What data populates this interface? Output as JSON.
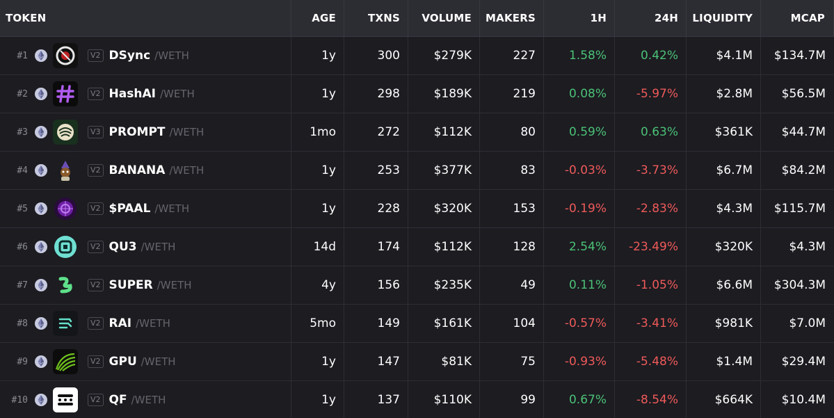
{
  "headers": {
    "token": "TOKEN",
    "age": "AGE",
    "txns": "TXNS",
    "volume": "VOLUME",
    "makers": "MAKERS",
    "h1": "1H",
    "h24": "24H",
    "liquidity": "LIQUIDITY",
    "mcap": "MCAP"
  },
  "rows": [
    {
      "rank": "#1",
      "version": "V2",
      "symbol": "DSync",
      "pair": "/WETH",
      "age": "1y",
      "txns": "300",
      "volume": "$279K",
      "makers": "227",
      "h1": "1.58%",
      "h1_dir": "pos",
      "h24": "0.42%",
      "h24_dir": "pos",
      "liquidity": "$4.1M",
      "mcap": "$134.7M",
      "logo": "dsync-logo"
    },
    {
      "rank": "#2",
      "version": "V2",
      "symbol": "HashAI",
      "pair": "/WETH",
      "age": "1y",
      "txns": "298",
      "volume": "$189K",
      "makers": "219",
      "h1": "0.08%",
      "h1_dir": "pos",
      "h24": "-5.97%",
      "h24_dir": "neg",
      "liquidity": "$2.8M",
      "mcap": "$56.5M",
      "logo": "hashai-logo"
    },
    {
      "rank": "#3",
      "version": "V3",
      "symbol": "PROMPT",
      "pair": "/WETH",
      "age": "1mo",
      "txns": "272",
      "volume": "$112K",
      "makers": "80",
      "h1": "0.59%",
      "h1_dir": "pos",
      "h24": "0.63%",
      "h24_dir": "pos",
      "liquidity": "$361K",
      "mcap": "$44.7M",
      "logo": "prompt-logo"
    },
    {
      "rank": "#4",
      "version": "V2",
      "symbol": "BANANA",
      "pair": "/WETH",
      "age": "1y",
      "txns": "253",
      "volume": "$377K",
      "makers": "83",
      "h1": "-0.03%",
      "h1_dir": "neg",
      "h24": "-3.73%",
      "h24_dir": "neg",
      "liquidity": "$6.7M",
      "mcap": "$84.2M",
      "logo": "banana-logo"
    },
    {
      "rank": "#5",
      "version": "V2",
      "symbol": "$PAAL",
      "pair": "/WETH",
      "age": "1y",
      "txns": "228",
      "volume": "$320K",
      "makers": "153",
      "h1": "-0.19%",
      "h1_dir": "neg",
      "h24": "-2.83%",
      "h24_dir": "neg",
      "liquidity": "$4.3M",
      "mcap": "$115.7M",
      "logo": "paal-logo"
    },
    {
      "rank": "#6",
      "version": "V2",
      "symbol": "QU3",
      "pair": "/WETH",
      "age": "14d",
      "txns": "174",
      "volume": "$112K",
      "makers": "128",
      "h1": "2.54%",
      "h1_dir": "pos",
      "h24": "-23.49%",
      "h24_dir": "neg",
      "liquidity": "$320K",
      "mcap": "$4.3M",
      "logo": "qu3-logo"
    },
    {
      "rank": "#7",
      "version": "V2",
      "symbol": "SUPER",
      "pair": "/WETH",
      "age": "4y",
      "txns": "156",
      "volume": "$235K",
      "makers": "49",
      "h1": "0.11%",
      "h1_dir": "pos",
      "h24": "-1.05%",
      "h24_dir": "neg",
      "liquidity": "$6.6M",
      "mcap": "$304.3M",
      "logo": "super-logo"
    },
    {
      "rank": "#8",
      "version": "V2",
      "symbol": "RAI",
      "pair": "/WETH",
      "age": "5mo",
      "txns": "149",
      "volume": "$161K",
      "makers": "104",
      "h1": "-0.57%",
      "h1_dir": "neg",
      "h24": "-3.41%",
      "h24_dir": "neg",
      "liquidity": "$981K",
      "mcap": "$7.0M",
      "logo": "rai-logo"
    },
    {
      "rank": "#9",
      "version": "V2",
      "symbol": "GPU",
      "pair": "/WETH",
      "age": "1y",
      "txns": "147",
      "volume": "$81K",
      "makers": "75",
      "h1": "-0.93%",
      "h1_dir": "neg",
      "h24": "-5.48%",
      "h24_dir": "neg",
      "liquidity": "$1.4M",
      "mcap": "$29.4M",
      "logo": "gpu-logo"
    },
    {
      "rank": "#10",
      "version": "V2",
      "symbol": "QF",
      "pair": "/WETH",
      "age": "1y",
      "txns": "137",
      "volume": "$110K",
      "makers": "99",
      "h1": "0.67%",
      "h1_dir": "pos",
      "h24": "-8.54%",
      "h24_dir": "neg",
      "liquidity": "$664K",
      "mcap": "$10.4M",
      "logo": "qf-logo"
    }
  ],
  "colors": {
    "positive": "#4cc277",
    "negative": "#f05a5a",
    "header_bg": "#2c2c33",
    "row_bg": "#1c1c21"
  },
  "icons": {
    "chain": "ethereum-icon"
  }
}
